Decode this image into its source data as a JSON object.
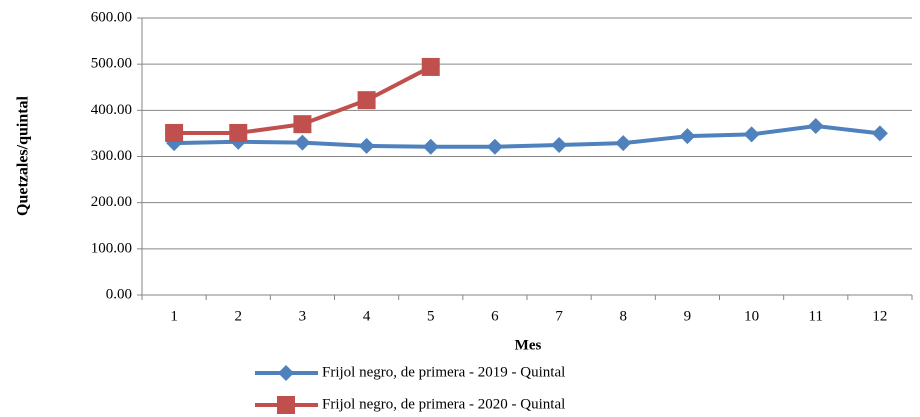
{
  "chart_data": {
    "type": "line",
    "x_label": "Mes",
    "y_label": "Quetzales/quintal",
    "categories": [
      "1",
      "2",
      "3",
      "4",
      "5",
      "6",
      "7",
      "8",
      "9",
      "10",
      "11",
      "12"
    ],
    "series": [
      {
        "name": "Frijol negro, de primera - 2019 - Quintal",
        "color": "#4f81bd",
        "marker": "diamond",
        "values": [
          329,
          332,
          330,
          323,
          321,
          321,
          325,
          329,
          344,
          348,
          366,
          350
        ]
      },
      {
        "name": "Frijol negro, de primera - 2020 - Quintal",
        "color": "#c0504d",
        "marker": "square",
        "values": [
          351,
          351,
          370,
          422,
          494,
          null,
          null,
          null,
          null,
          null,
          null,
          null
        ]
      }
    ],
    "ylim": [
      0,
      600
    ],
    "yticks": [
      {
        "value": 0,
        "label": "0.00"
      },
      {
        "value": 100,
        "label": "100.00"
      },
      {
        "value": 200,
        "label": "200.00"
      },
      {
        "value": 300,
        "label": "300.00"
      },
      {
        "value": 400,
        "label": "400.00"
      },
      {
        "value": 500,
        "label": "500.00"
      },
      {
        "value": 600,
        "label": "600.00"
      }
    ],
    "grid": true,
    "legend": "bottom"
  }
}
